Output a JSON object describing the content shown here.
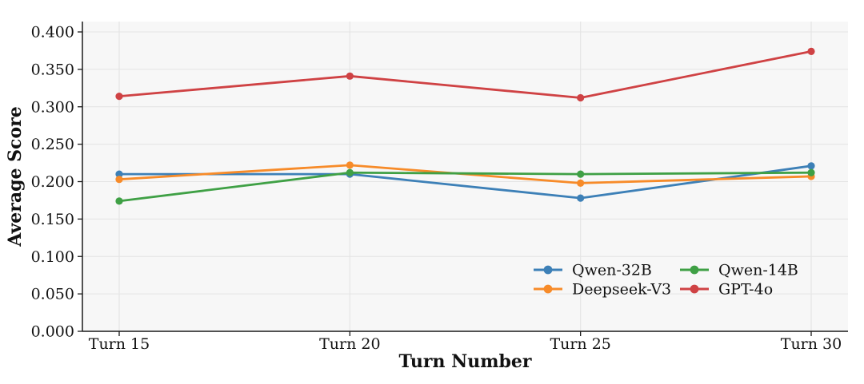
{
  "chart_data": {
    "type": "line",
    "title": "",
    "xlabel": "Turn Number",
    "ylabel": "Average Score",
    "categories": [
      "Turn 15",
      "Turn 20",
      "Turn 25",
      "Turn 30"
    ],
    "series": [
      {
        "name": "Qwen-32B",
        "color": "#3d80b7",
        "values": [
          0.21,
          0.21,
          0.178,
          0.221
        ]
      },
      {
        "name": "Deepseek-V3",
        "color": "#f78b29",
        "values": [
          0.203,
          0.222,
          0.198,
          0.207
        ]
      },
      {
        "name": "Qwen-14B",
        "color": "#3fa045",
        "values": [
          0.174,
          0.212,
          0.21,
          0.212
        ]
      },
      {
        "name": "GPT-4o",
        "color": "#cf4244",
        "values": [
          0.314,
          0.341,
          0.312,
          0.374
        ]
      }
    ],
    "yticks": [
      0.0,
      0.05,
      0.1,
      0.15,
      0.2,
      0.25,
      0.3,
      0.35,
      0.4
    ],
    "ytick_decimals": 3,
    "ylim": [
      0.0,
      0.414
    ],
    "grid": true,
    "marker": "circle",
    "legend": {
      "position": "lower right",
      "columns": 2,
      "frame": false,
      "entries": [
        "Qwen-32B",
        "Deepseek-V3",
        "Qwen-14B",
        "GPT-4o"
      ]
    }
  },
  "colors": {
    "background": "#ffffff",
    "plot_background": "#f7f7f7",
    "gridline": "#e4e4e4",
    "axis": "#1a1a1a",
    "text": "#111111"
  }
}
